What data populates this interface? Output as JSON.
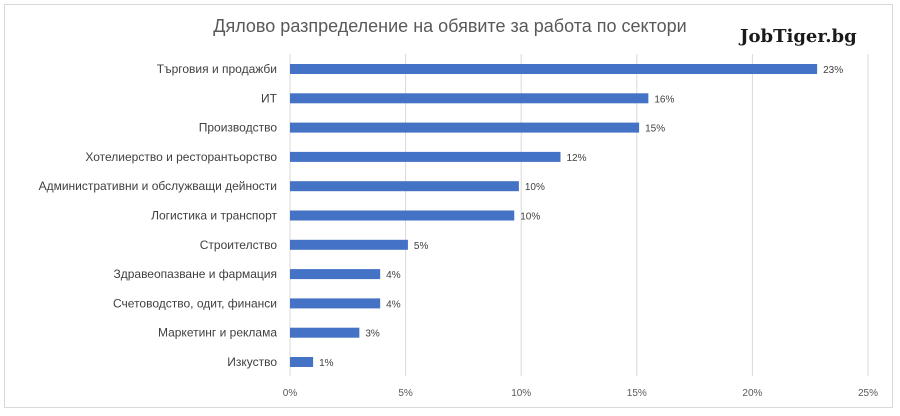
{
  "chart_data": {
    "type": "bar",
    "orientation": "horizontal",
    "title": "Дялово разпределение на обявите за работа по сектори",
    "brand": "JobTiger.bg",
    "categories": [
      "Търговия и продажби",
      "ИТ",
      "Производство",
      "Хотелиерство и ресторантьорство",
      "Административни и обслужващи дейности",
      "Логистика и транспорт",
      "Строителство",
      "Здравеопазване и фармация",
      "Счетоводство, одит, финанси",
      "Маркетинг и реклама",
      "Изкуство"
    ],
    "values": [
      22.8,
      15.5,
      15.1,
      11.7,
      9.9,
      9.7,
      5.1,
      3.9,
      3.9,
      3.0,
      1.0
    ],
    "value_labels": [
      "23%",
      "16%",
      "15%",
      "12%",
      "10%",
      "10%",
      "5%",
      "4%",
      "4%",
      "3%",
      "1%"
    ],
    "xlim": [
      0,
      25
    ],
    "xticks": [
      0,
      5,
      10,
      15,
      20,
      25
    ],
    "xtick_labels": [
      "0%",
      "5%",
      "10%",
      "15%",
      "20%",
      "25%"
    ],
    "gridlines": true,
    "colors": {
      "bar": "#4472c4",
      "grid": "#d9d9d9"
    }
  }
}
